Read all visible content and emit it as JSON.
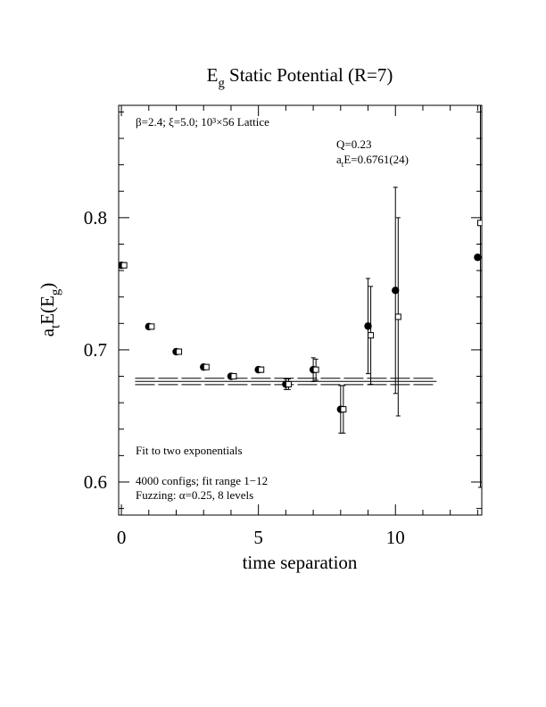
{
  "chart_data": {
    "type": "scatter",
    "title": [
      {
        "text": "E"
      },
      {
        "text": "g",
        "sub": true
      },
      {
        "text": " Static Potential (R=7)"
      }
    ],
    "xlabel": "time separation",
    "ylabel": [
      {
        "text": "a"
      },
      {
        "text": "t",
        "sub": true
      },
      {
        "text": "E(E"
      },
      {
        "text": "g",
        "sub": true
      },
      {
        "text": ")"
      }
    ],
    "xlim": [
      -0.1,
      13.15
    ],
    "ylim": [
      0.575,
      0.885
    ],
    "xticks": [
      0,
      5,
      10
    ],
    "xticks_minor": [
      1,
      2,
      3,
      4,
      6,
      7,
      8,
      9,
      11,
      12,
      13
    ],
    "yticks": [
      0.6,
      0.7,
      0.8
    ],
    "yticks_minor": [
      0.58,
      0.62,
      0.64,
      0.66,
      0.68,
      0.72,
      0.74,
      0.76,
      0.78,
      0.82,
      0.84,
      0.86,
      0.88
    ],
    "series": [
      {
        "marker": "circle",
        "color": "#000000",
        "x": [
          0,
          1,
          2,
          3,
          4,
          5,
          6,
          7,
          8,
          9,
          10,
          13
        ],
        "values": [
          0.764,
          0.7176,
          0.6986,
          0.687,
          0.68,
          0.685,
          0.674,
          0.685,
          0.655,
          0.718,
          0.745,
          0.77
        ],
        "errors": [
          0.002,
          0.001,
          0.001,
          0.001,
          0.001,
          0.002,
          0.004,
          0.009,
          0.018,
          0.036,
          0.078,
          0.002
        ]
      },
      {
        "marker": "square",
        "color": "#000000",
        "x": [
          0.1,
          1.1,
          2.1,
          3.1,
          4.1,
          5.1,
          6.1,
          7.1,
          8.1,
          9.1,
          10.1,
          13.1
        ],
        "values": [
          0.764,
          0.7176,
          0.6986,
          0.687,
          0.68,
          0.685,
          0.674,
          0.685,
          0.655,
          0.711,
          0.725,
          0.796
        ],
        "errors": [
          0.002,
          0.001,
          0.001,
          0.001,
          0.001,
          0.002,
          0.004,
          0.008,
          0.018,
          0.037,
          0.075,
          0.2
        ]
      }
    ],
    "fit": {
      "y": 0.6761,
      "err": 0.0024,
      "x": [
        0.5,
        11.5
      ]
    },
    "annotations": [
      {
        "text": [
          {
            "text": "β=2.4; ξ=5.0; 10³×56 Lattice"
          }
        ]
      },
      {
        "text": [
          {
            "text": "Q=0.23"
          }
        ]
      },
      {
        "text": [
          {
            "text": "a"
          },
          {
            "text": "t",
            "sub": true
          },
          {
            "text": "E=0.6761(24)"
          }
        ]
      },
      {
        "text": [
          {
            "text": "Fit to two exponentials"
          }
        ]
      },
      {
        "text": [
          {
            "text": "4000 configs; fit range 1−12"
          }
        ]
      },
      {
        "text": [
          {
            "text": "Fuzzing: α=0.25, 8 levels"
          }
        ]
      }
    ]
  }
}
